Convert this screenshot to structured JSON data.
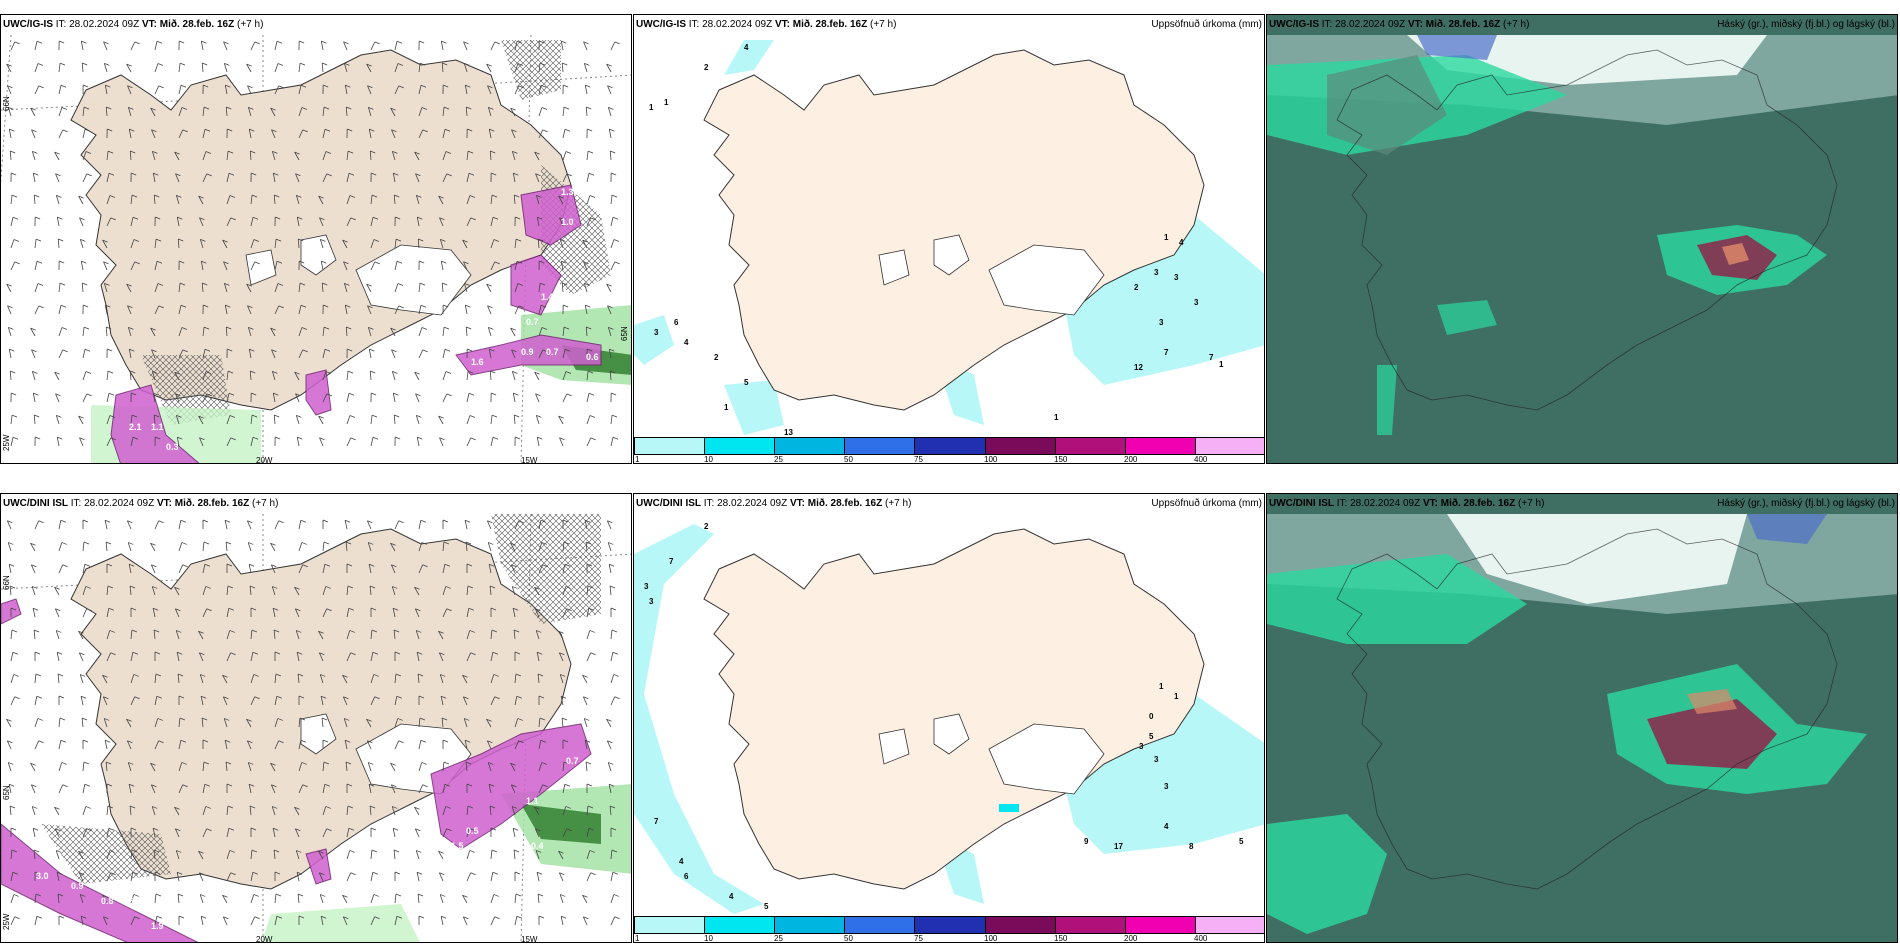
{
  "rows": [
    {
      "model": "UWC/IG-IS",
      "it": "IT: 28.02.2024 09Z",
      "vt_label": "VT:",
      "vt_value": "Mið. 28.feb. 16Z",
      "lead": "(+7 h)"
    },
    {
      "model": "UWC/DINI ISL",
      "it": "IT: 28.02.2024 09Z",
      "vt_label": "VT:",
      "vt_value": "Mið. 28.feb. 16Z",
      "lead": "(+7 h)"
    }
  ],
  "panel_titles": {
    "precip": "Uppsöfnuð úrkoma (mm)",
    "cloud": "Háský (gr.), miðský (fj.bl.) og lágský (bl.)"
  },
  "map_labels": {
    "lat": "66N",
    "lat2": "65N",
    "lon1": "20W",
    "lon2": "15W",
    "lon3": "25W"
  },
  "legend": {
    "colors": [
      "#b7f7f7",
      "#00e6f0",
      "#00b5e0",
      "#2f6fe8",
      "#2030b0",
      "#7a0a5a",
      "#b0107a",
      "#f000b0",
      "#f6b0f6"
    ],
    "ticks": [
      "1",
      "10",
      "25",
      "50",
      "75",
      "100",
      "150",
      "200",
      "400"
    ]
  },
  "precip_values_top": [
    "2",
    "4",
    "1",
    "1",
    "6",
    "3",
    "4",
    "2",
    "5",
    "1",
    "13",
    "1",
    "2",
    "3",
    "3",
    "3",
    "3",
    "1",
    "4",
    "7",
    "7",
    "12",
    "1"
  ],
  "precip_values_bottom": [
    "2",
    "7",
    "3",
    "3",
    "7",
    "4",
    "6",
    "4",
    "5",
    "1",
    "0",
    "5",
    "3",
    "3",
    "3",
    "4",
    "8",
    "9",
    "17",
    "5",
    "1"
  ],
  "wind_values_top": [
    "1.4",
    "0.7",
    "1.6",
    "2.1",
    "1.1",
    "1.0",
    "0.3",
    "0.7",
    "0.6",
    "0.9",
    "1.3"
  ],
  "wind_values_bottom": [
    "0.7",
    "1.1",
    "0.5",
    "1.5",
    "0.4",
    "1.9",
    "3.0",
    "0.8",
    "0.6",
    "1.0",
    "0.9"
  ]
}
